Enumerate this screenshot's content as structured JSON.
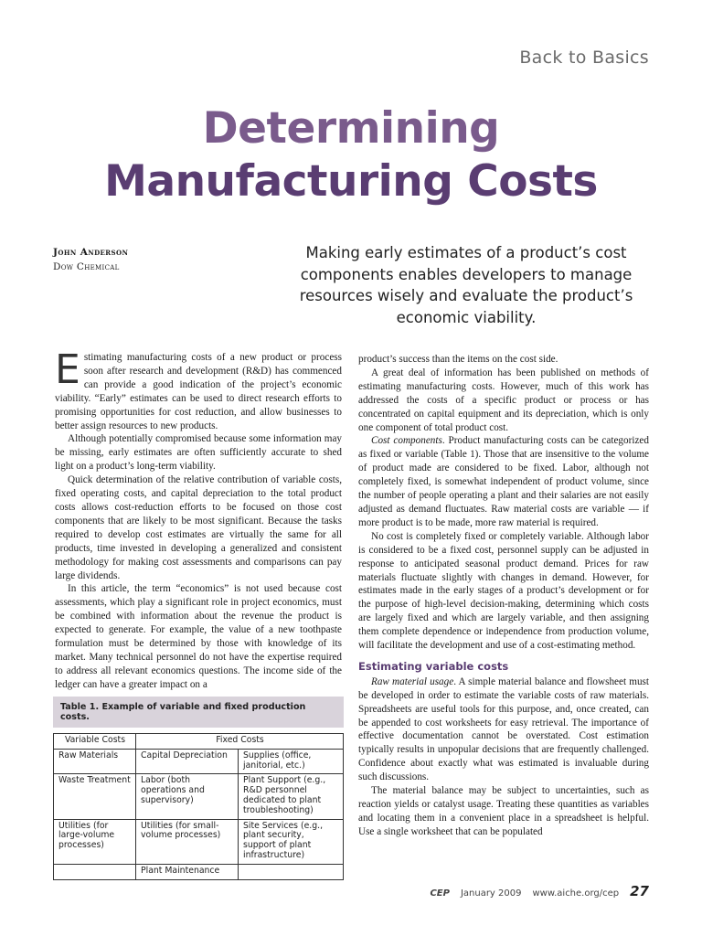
{
  "header": {
    "section": "Back to Basics"
  },
  "title": {
    "line1": "Determining",
    "line2": "Manufacturing Costs"
  },
  "author": {
    "name": "John Anderson",
    "affiliation": "Dow Chemical"
  },
  "deck": "Making early estimates of a product’s cost components enables developers to manage resources wisely and evaluate the product’s economic viability.",
  "body_left": {
    "dropcap": "E",
    "p1": "stimating manufacturing costs of a new product or process soon after research and development (R&D) has commenced can provide a good indication of the project’s economic viability. “Early” estimates can be used to direct research efforts to promising opportunities for cost reduction, and allow businesses to better assign resources to new products.",
    "p2": "Although potentially compromised because some information may be missing, early estimates are often sufficiently accurate to shed light on a product’s long-term viability.",
    "p3": "Quick determination of the relative contribution of variable costs, fixed operating costs, and capital depreciation to the total product costs allows cost-reduction efforts to be focused on those cost components that are likely to be most significant. Because the tasks required to develop cost estimates are virtually the same for all products, time invested in developing a generalized and consistent methodology for making cost assessments and comparisons can pay large dividends.",
    "p4": "In this article, the term “economics” is not used because cost assessments, which play a significant role in project economics, must be combined with information about the revenue the product is expected to generate. For example, the value of a new toothpaste formulation must be determined by those with knowledge of its market. Many technical personnel do not have the expertise required to address all relevant economics questions. The income side of the ledger can have a greater impact on a"
  },
  "body_right": {
    "p1": "product’s success than the items on the cost side.",
    "p2": "A great deal of information has been published on methods of estimating manufacturing costs. However, much of this work has addressed the costs of a specific product or process or has concentrated on capital equipment and its depreciation, which is only one component of total product cost.",
    "p3_lead": "Cost components",
    "p3": ". Product manufacturing costs can be categorized as fixed or variable (Table 1). Those that are insensitive to the volume of product made are considered to be fixed. Labor, although not completely fixed, is somewhat independent of product volume, since the number of people operating a plant and their salaries are not easily adjusted as demand fluctuates. Raw material costs are variable — if more product is to be made, more raw material is required.",
    "p4": "No cost is completely fixed or completely variable. Although labor is considered to be a fixed cost, personnel supply can be adjusted in response to anticipated seasonal product demand. Prices for raw materials fluctuate slightly with changes in demand. However, for estimates made in the early stages of a product’s development or for the purpose of high-level decision-making, determining which costs are largely fixed and which are largely variable, and then assigning them complete dependence or independence from production volume, will facilitate the development and use of a cost-estimating method.",
    "subhead": "Estimating variable costs",
    "p5_lead": "Raw material usage",
    "p5": ". A simple material balance and flowsheet must be developed in order to estimate the variable costs of raw materials. Spreadsheets are useful tools for this purpose, and, once created, can be appended to cost worksheets for easy retrieval. The importance of effective documentation cannot be overstated. Cost estimation typically results in unpopular decisions that are frequently challenged. Confidence about exactly what was estimated is invaluable during such discussions.",
    "p6": "The material balance may be subject to uncertainties, such as reaction yields or catalyst usage. Treating these quantities as variables and locating them in a convenient place in a spreadsheet is helpful. Use a single worksheet that can be populated"
  },
  "table": {
    "caption": "Table 1. Example of variable and fixed production costs.",
    "headers": [
      "Variable Costs",
      "Fixed Costs"
    ],
    "rows": [
      [
        "Raw Materials",
        "Capital Depreciation",
        "Supplies (office, janitorial, etc.)"
      ],
      [
        "Waste Treatment",
        "Labor (both operations and supervisory)",
        "Plant Support (e.g., R&D personnel dedicated to plant troubleshooting)"
      ],
      [
        "Utilities (for large-volume processes)",
        "Utilities (for small-volume processes)",
        "Site Services (e.g., plant security, support of plant infrastructure)"
      ],
      [
        "",
        "Plant Maintenance",
        ""
      ]
    ]
  },
  "footer": {
    "publication": "CEP",
    "date": "January 2009",
    "url": "www.aiche.org/cep",
    "page": "27"
  }
}
